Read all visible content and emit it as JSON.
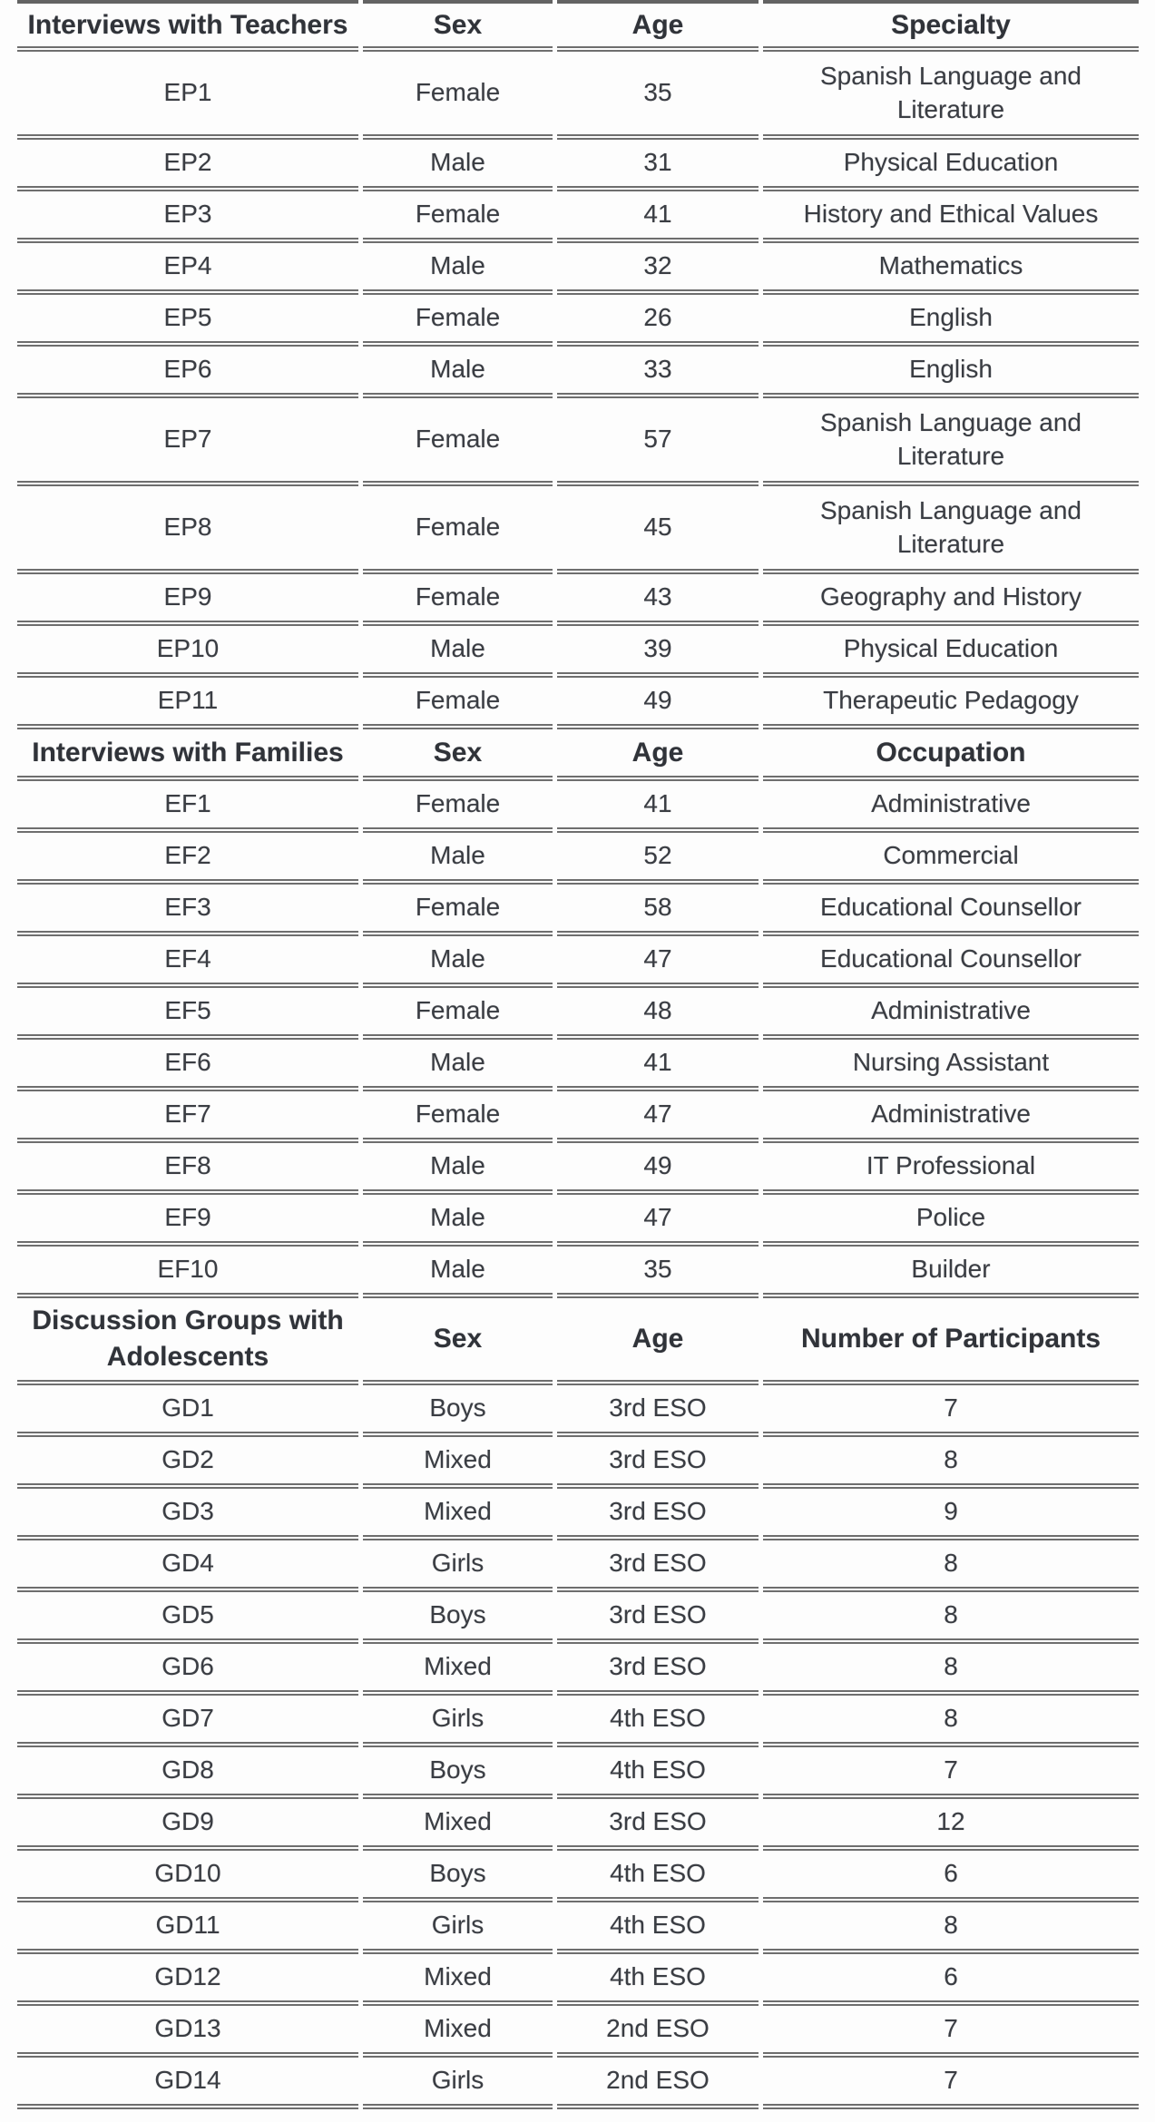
{
  "page": {
    "background": "#fdfdfd",
    "rule_color": "#6e6e6e",
    "text_color": "#3a3d43"
  },
  "table": {
    "sections": [
      {
        "header": {
          "title": "Interviews with Teachers",
          "sex": "Sex",
          "age": "Age",
          "last": "Specialty"
        },
        "rows": [
          {
            "id": "EP1",
            "sex": "Female",
            "age": "35",
            "last": "Spanish Language and Literature",
            "tall": true
          },
          {
            "id": "EP2",
            "sex": "Male",
            "age": "31",
            "last": "Physical Education"
          },
          {
            "id": "EP3",
            "sex": "Female",
            "age": "41",
            "last": "History and Ethical Values"
          },
          {
            "id": "EP4",
            "sex": "Male",
            "age": "32",
            "last": "Mathematics"
          },
          {
            "id": "EP5",
            "sex": "Female",
            "age": "26",
            "last": "English"
          },
          {
            "id": "EP6",
            "sex": "Male",
            "age": "33",
            "last": "English"
          },
          {
            "id": "EP7",
            "sex": "Female",
            "age": "57",
            "last": "Spanish Language and Literature",
            "tall": true
          },
          {
            "id": "EP8",
            "sex": "Female",
            "age": "45",
            "last": "Spanish Language and Literature",
            "tall": true
          },
          {
            "id": "EP9",
            "sex": "Female",
            "age": "43",
            "last": "Geography and History"
          },
          {
            "id": "EP10",
            "sex": "Male",
            "age": "39",
            "last": "Physical Education"
          },
          {
            "id": "EP11",
            "sex": "Female",
            "age": "49",
            "last": "Therapeutic Pedagogy"
          }
        ]
      },
      {
        "header": {
          "title": "Interviews with Families",
          "sex": "Sex",
          "age": "Age",
          "last": "Occupation"
        },
        "rows": [
          {
            "id": "EF1",
            "sex": "Female",
            "age": "41",
            "last": "Administrative"
          },
          {
            "id": "EF2",
            "sex": "Male",
            "age": "52",
            "last": "Commercial"
          },
          {
            "id": "EF3",
            "sex": "Female",
            "age": "58",
            "last": "Educational Counsellor"
          },
          {
            "id": "EF4",
            "sex": "Male",
            "age": "47",
            "last": "Educational Counsellor"
          },
          {
            "id": "EF5",
            "sex": "Female",
            "age": "48",
            "last": "Administrative"
          },
          {
            "id": "EF6",
            "sex": "Male",
            "age": "41",
            "last": "Nursing Assistant"
          },
          {
            "id": "EF7",
            "sex": "Female",
            "age": "47",
            "last": "Administrative"
          },
          {
            "id": "EF8",
            "sex": "Male",
            "age": "49",
            "last": "IT Professional"
          },
          {
            "id": "EF9",
            "sex": "Male",
            "age": "47",
            "last": "Police"
          },
          {
            "id": "EF10",
            "sex": "Male",
            "age": "35",
            "last": "Builder"
          }
        ]
      },
      {
        "header": {
          "title": "Discussion Groups with Adolescents",
          "sex": "Sex",
          "age": "Age",
          "last": "Number of Participants"
        },
        "tall_header": true,
        "rows": [
          {
            "id": "GD1",
            "sex": "Boys",
            "age": "3rd ESO",
            "last": "7"
          },
          {
            "id": "GD2",
            "sex": "Mixed",
            "age": "3rd ESO",
            "last": "8"
          },
          {
            "id": "GD3",
            "sex": "Mixed",
            "age": "3rd ESO",
            "last": "9"
          },
          {
            "id": "GD4",
            "sex": "Girls",
            "age": "3rd ESO",
            "last": "8"
          },
          {
            "id": "GD5",
            "sex": "Boys",
            "age": "3rd ESO",
            "last": "8"
          },
          {
            "id": "GD6",
            "sex": "Mixed",
            "age": "3rd ESO",
            "last": "8"
          },
          {
            "id": "GD7",
            "sex": "Girls",
            "age": "4th ESO",
            "last": "8"
          },
          {
            "id": "GD8",
            "sex": "Boys",
            "age": "4th ESO",
            "last": "7"
          },
          {
            "id": "GD9",
            "sex": "Mixed",
            "age": "3rd ESO",
            "last": "12"
          },
          {
            "id": "GD10",
            "sex": "Boys",
            "age": "4th ESO",
            "last": "6"
          },
          {
            "id": "GD11",
            "sex": "Girls",
            "age": "4th ESO",
            "last": "8"
          },
          {
            "id": "GD12",
            "sex": "Mixed",
            "age": "4th ESO",
            "last": "6"
          },
          {
            "id": "GD13",
            "sex": "Mixed",
            "age": "2nd ESO",
            "last": "7"
          },
          {
            "id": "GD14",
            "sex": "Girls",
            "age": "2nd ESO",
            "last": "7"
          }
        ]
      }
    ]
  }
}
